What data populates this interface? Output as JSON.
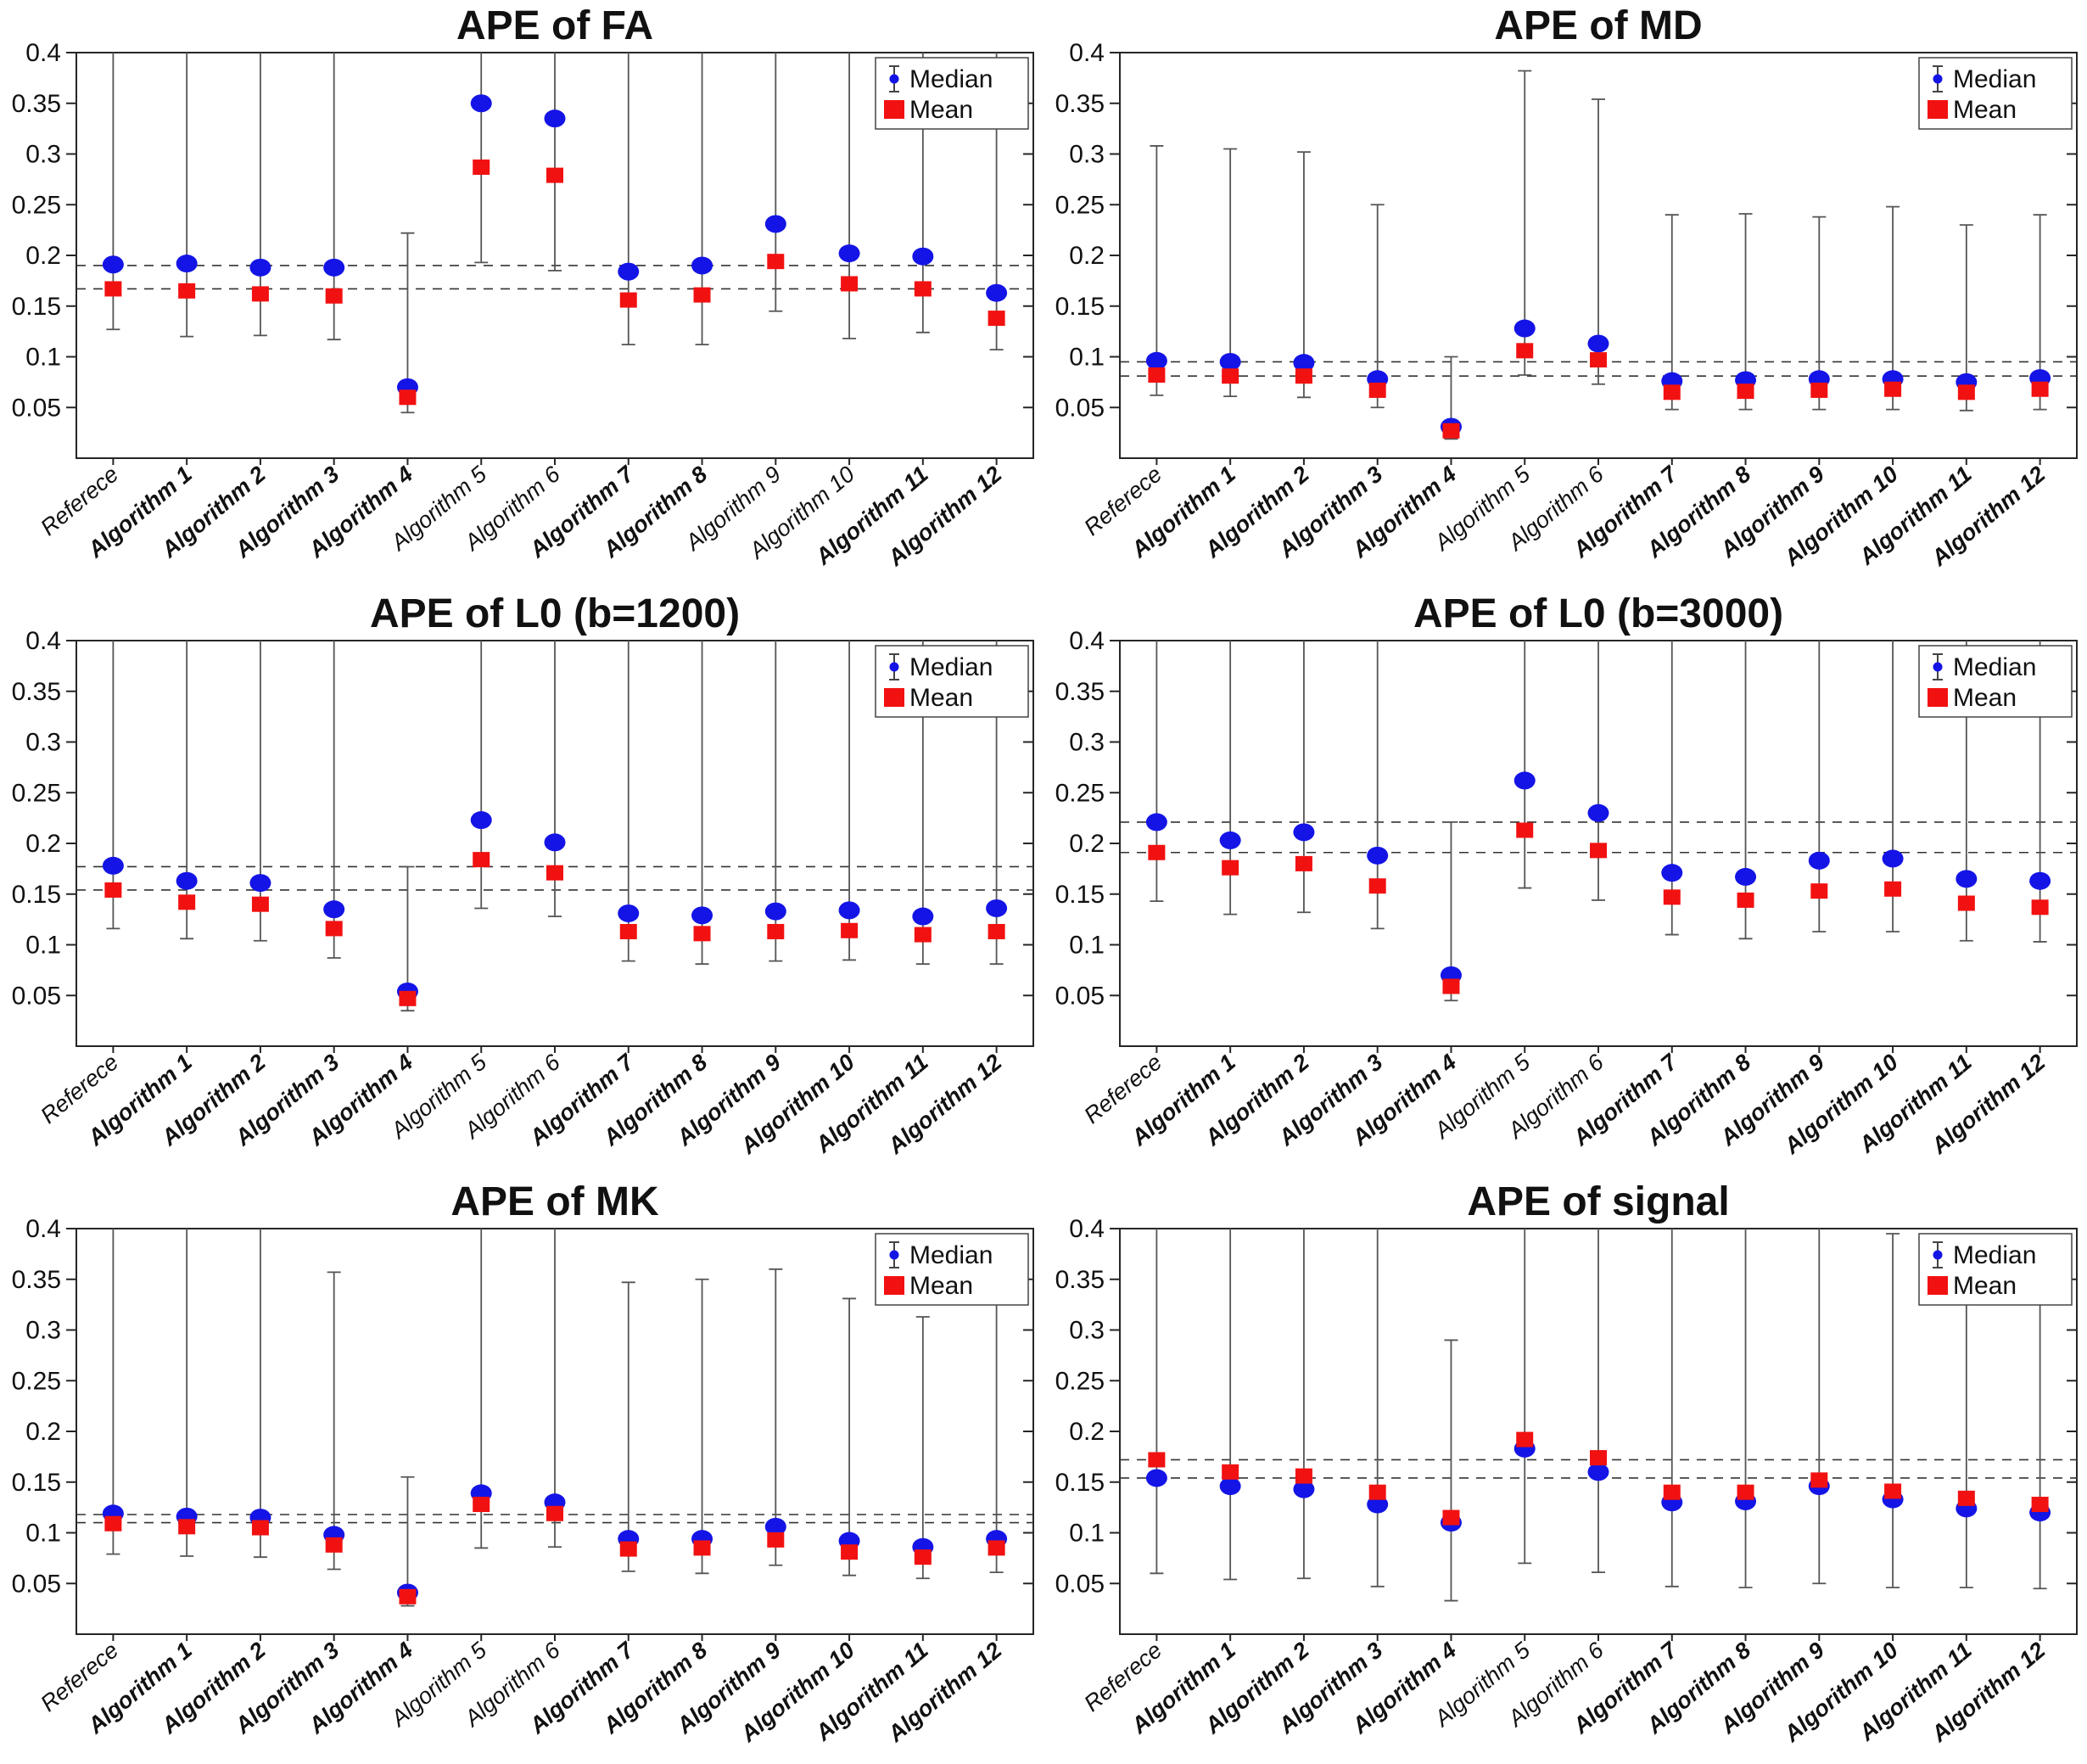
{
  "legend": {
    "median_label": "Median",
    "mean_label": "Mean"
  },
  "axis": {
    "y_min": 0,
    "y_max": 0.4,
    "y_tick_labels": [
      "0.05",
      "0.1",
      "0.15",
      "0.2",
      "0.25",
      "0.3",
      "0.35",
      "0.4"
    ]
  },
  "style": {
    "median_color": "#1414e6",
    "mean_color": "#f21111",
    "whisker_color": "#555555",
    "dashed_color": "#333333",
    "frame_color": "#262626",
    "background": "#ffffff"
  },
  "chart_data": [
    {
      "type": "scatter",
      "title": "APE of FA",
      "ylim": [
        0,
        0.4
      ],
      "grid": false,
      "legend_position": "top-right",
      "ref_dashed_lines": [
        0.19,
        0.167
      ],
      "categories": [
        {
          "label": "Referece",
          "bold": false
        },
        {
          "label": "Algorithm 1",
          "bold": true
        },
        {
          "label": "Algorithm 2",
          "bold": true
        },
        {
          "label": "Algorithm 3",
          "bold": true
        },
        {
          "label": "Algorithm 4",
          "bold": true
        },
        {
          "label": "Algorithm 5",
          "bold": false
        },
        {
          "label": "Algorithm 6",
          "bold": false
        },
        {
          "label": "Algorithm 7",
          "bold": true
        },
        {
          "label": "Algorithm 8",
          "bold": true
        },
        {
          "label": "Algorithm 9",
          "bold": false
        },
        {
          "label": "Algorithm 10",
          "bold": false
        },
        {
          "label": "Algorithm 11",
          "bold": true
        },
        {
          "label": "Algorithm 12",
          "bold": true
        }
      ],
      "series": [
        {
          "name": "Median",
          "marker": "circle",
          "values": [
            0.191,
            0.192,
            0.188,
            0.188,
            0.07,
            0.35,
            0.335,
            0.184,
            0.19,
            0.231,
            0.202,
            0.199,
            0.163
          ]
        },
        {
          "name": "Mean",
          "marker": "square",
          "values": [
            0.167,
            0.165,
            0.162,
            0.16,
            0.06,
            0.287,
            0.279,
            0.156,
            0.161,
            0.194,
            0.172,
            0.167,
            0.138
          ]
        }
      ],
      "whisker_low": [
        0.127,
        0.12,
        0.121,
        0.117,
        0.045,
        0.193,
        0.185,
        0.112,
        0.112,
        0.145,
        0.118,
        0.124,
        0.107
      ],
      "whisker_high": [
        0.4,
        0.4,
        0.4,
        0.4,
        0.222,
        0.4,
        0.4,
        0.4,
        0.4,
        0.4,
        0.4,
        0.4,
        0.4
      ]
    },
    {
      "type": "scatter",
      "title": "APE of MD",
      "ylim": [
        0,
        0.4
      ],
      "grid": false,
      "legend_position": "top-right",
      "ref_dashed_lines": [
        0.095,
        0.081
      ],
      "categories": [
        {
          "label": "Referece",
          "bold": false
        },
        {
          "label": "Algorithm 1",
          "bold": true
        },
        {
          "label": "Algorithm 2",
          "bold": true
        },
        {
          "label": "Algorithm 3",
          "bold": true
        },
        {
          "label": "Algorithm 4",
          "bold": true
        },
        {
          "label": "Algorithm 5",
          "bold": false
        },
        {
          "label": "Algorithm 6",
          "bold": false
        },
        {
          "label": "Algorithm 7",
          "bold": true
        },
        {
          "label": "Algorithm 8",
          "bold": true
        },
        {
          "label": "Algorithm 9",
          "bold": true
        },
        {
          "label": "Algorithm 10",
          "bold": true
        },
        {
          "label": "Algorithm 11",
          "bold": true
        },
        {
          "label": "Algorithm 12",
          "bold": true
        }
      ],
      "series": [
        {
          "name": "Median",
          "marker": "circle",
          "values": [
            0.096,
            0.095,
            0.094,
            0.078,
            0.031,
            0.128,
            0.113,
            0.076,
            0.077,
            0.078,
            0.078,
            0.075,
            0.079
          ]
        },
        {
          "name": "Mean",
          "marker": "square",
          "values": [
            0.082,
            0.081,
            0.081,
            0.067,
            0.027,
            0.106,
            0.097,
            0.065,
            0.066,
            0.067,
            0.068,
            0.065,
            0.068
          ]
        }
      ],
      "whisker_low": [
        0.062,
        0.061,
        0.06,
        0.05,
        0.019,
        0.082,
        0.073,
        0.048,
        0.048,
        0.048,
        0.048,
        0.047,
        0.048
      ],
      "whisker_high": [
        0.308,
        0.305,
        0.302,
        0.25,
        0.1,
        0.382,
        0.354,
        0.24,
        0.241,
        0.238,
        0.248,
        0.23,
        0.24
      ]
    },
    {
      "type": "scatter",
      "title": "APE of L0 (b=1200)",
      "ylim": [
        0,
        0.4
      ],
      "grid": false,
      "legend_position": "top-right",
      "ref_dashed_lines": [
        0.177,
        0.154
      ],
      "categories": [
        {
          "label": "Referece",
          "bold": false
        },
        {
          "label": "Algorithm 1",
          "bold": true
        },
        {
          "label": "Algorithm 2",
          "bold": true
        },
        {
          "label": "Algorithm 3",
          "bold": true
        },
        {
          "label": "Algorithm 4",
          "bold": true
        },
        {
          "label": "Algorithm 5",
          "bold": false
        },
        {
          "label": "Algorithm 6",
          "bold": false
        },
        {
          "label": "Algorithm 7",
          "bold": true
        },
        {
          "label": "Algorithm 8",
          "bold": true
        },
        {
          "label": "Algorithm 9",
          "bold": true
        },
        {
          "label": "Algorithm 10",
          "bold": true
        },
        {
          "label": "Algorithm 11",
          "bold": true
        },
        {
          "label": "Algorithm 12",
          "bold": true
        }
      ],
      "series": [
        {
          "name": "Median",
          "marker": "circle",
          "values": [
            0.178,
            0.163,
            0.161,
            0.135,
            0.054,
            0.223,
            0.201,
            0.131,
            0.129,
            0.133,
            0.134,
            0.128,
            0.136
          ]
        },
        {
          "name": "Mean",
          "marker": "square",
          "values": [
            0.154,
            0.142,
            0.14,
            0.116,
            0.047,
            0.184,
            0.171,
            0.113,
            0.111,
            0.113,
            0.114,
            0.11,
            0.113
          ]
        }
      ],
      "whisker_low": [
        0.116,
        0.106,
        0.104,
        0.087,
        0.035,
        0.136,
        0.128,
        0.084,
        0.081,
        0.084,
        0.085,
        0.081,
        0.081
      ],
      "whisker_high": [
        0.4,
        0.4,
        0.4,
        0.4,
        0.177,
        0.4,
        0.4,
        0.4,
        0.4,
        0.4,
        0.4,
        0.4,
        0.4
      ]
    },
    {
      "type": "scatter",
      "title": "APE of L0 (b=3000)",
      "ylim": [
        0,
        0.4
      ],
      "grid": false,
      "legend_position": "top-right",
      "ref_dashed_lines": [
        0.221,
        0.191
      ],
      "categories": [
        {
          "label": "Referece",
          "bold": false
        },
        {
          "label": "Algorithm 1",
          "bold": true
        },
        {
          "label": "Algorithm 2",
          "bold": true
        },
        {
          "label": "Algorithm 3",
          "bold": true
        },
        {
          "label": "Algorithm 4",
          "bold": true
        },
        {
          "label": "Algorithm 5",
          "bold": false
        },
        {
          "label": "Algorithm 6",
          "bold": false
        },
        {
          "label": "Algorithm 7",
          "bold": true
        },
        {
          "label": "Algorithm 8",
          "bold": true
        },
        {
          "label": "Algorithm 9",
          "bold": true
        },
        {
          "label": "Algorithm 10",
          "bold": true
        },
        {
          "label": "Algorithm 11",
          "bold": true
        },
        {
          "label": "Algorithm 12",
          "bold": true
        }
      ],
      "series": [
        {
          "name": "Median",
          "marker": "circle",
          "values": [
            0.221,
            0.203,
            0.211,
            0.188,
            0.07,
            0.262,
            0.23,
            0.171,
            0.167,
            0.183,
            0.185,
            0.165,
            0.163
          ]
        },
        {
          "name": "Mean",
          "marker": "square",
          "values": [
            0.191,
            0.176,
            0.18,
            0.158,
            0.059,
            0.213,
            0.193,
            0.147,
            0.144,
            0.153,
            0.155,
            0.141,
            0.137
          ]
        }
      ],
      "whisker_low": [
        0.143,
        0.13,
        0.132,
        0.116,
        0.045,
        0.156,
        0.144,
        0.11,
        0.106,
        0.113,
        0.113,
        0.104,
        0.103
      ],
      "whisker_high": [
        0.4,
        0.4,
        0.4,
        0.4,
        0.221,
        0.4,
        0.4,
        0.4,
        0.4,
        0.4,
        0.4,
        0.4,
        0.4
      ]
    },
    {
      "type": "scatter",
      "title": "APE of MK",
      "ylim": [
        0,
        0.4
      ],
      "grid": false,
      "legend_position": "top-right",
      "ref_dashed_lines": [
        0.118,
        0.11
      ],
      "categories": [
        {
          "label": "Referece",
          "bold": false
        },
        {
          "label": "Algorithm 1",
          "bold": true
        },
        {
          "label": "Algorithm 2",
          "bold": true
        },
        {
          "label": "Algorithm 3",
          "bold": true
        },
        {
          "label": "Algorithm 4",
          "bold": true
        },
        {
          "label": "Algorithm 5",
          "bold": false
        },
        {
          "label": "Algorithm 6",
          "bold": false
        },
        {
          "label": "Algorithm 7",
          "bold": true
        },
        {
          "label": "Algorithm 8",
          "bold": true
        },
        {
          "label": "Algorithm 9",
          "bold": true
        },
        {
          "label": "Algorithm 10",
          "bold": true
        },
        {
          "label": "Algorithm 11",
          "bold": true
        },
        {
          "label": "Algorithm 12",
          "bold": true
        }
      ],
      "series": [
        {
          "name": "Median",
          "marker": "circle",
          "values": [
            0.119,
            0.116,
            0.115,
            0.098,
            0.041,
            0.139,
            0.13,
            0.094,
            0.094,
            0.106,
            0.092,
            0.086,
            0.094
          ]
        },
        {
          "name": "Mean",
          "marker": "square",
          "values": [
            0.109,
            0.106,
            0.105,
            0.088,
            0.037,
            0.128,
            0.119,
            0.084,
            0.085,
            0.093,
            0.081,
            0.076,
            0.085
          ]
        }
      ],
      "whisker_low": [
        0.079,
        0.077,
        0.076,
        0.064,
        0.028,
        0.085,
        0.086,
        0.062,
        0.06,
        0.068,
        0.058,
        0.055,
        0.061
      ],
      "whisker_high": [
        0.4,
        0.4,
        0.4,
        0.357,
        0.155,
        0.4,
        0.4,
        0.347,
        0.35,
        0.36,
        0.331,
        0.313,
        0.35
      ]
    },
    {
      "type": "scatter",
      "title": "APE of signal",
      "ylim": [
        0,
        0.4
      ],
      "grid": false,
      "legend_position": "top-right",
      "ref_dashed_lines": [
        0.172,
        0.154
      ],
      "categories": [
        {
          "label": "Referece",
          "bold": false
        },
        {
          "label": "Algorithm 1",
          "bold": true
        },
        {
          "label": "Algorithm 2",
          "bold": true
        },
        {
          "label": "Algorithm 3",
          "bold": true
        },
        {
          "label": "Algorithm 4",
          "bold": true
        },
        {
          "label": "Algorithm 5",
          "bold": false
        },
        {
          "label": "Algorithm 6",
          "bold": false
        },
        {
          "label": "Algorithm 7",
          "bold": true
        },
        {
          "label": "Algorithm 8",
          "bold": true
        },
        {
          "label": "Algorithm 9",
          "bold": true
        },
        {
          "label": "Algorithm 10",
          "bold": true
        },
        {
          "label": "Algorithm 11",
          "bold": true
        },
        {
          "label": "Algorithm 12",
          "bold": true
        }
      ],
      "series": [
        {
          "name": "Median",
          "marker": "circle",
          "values": [
            0.154,
            0.146,
            0.143,
            0.128,
            0.11,
            0.183,
            0.16,
            0.13,
            0.131,
            0.146,
            0.133,
            0.124,
            0.12
          ]
        },
        {
          "name": "Mean",
          "marker": "square",
          "values": [
            0.172,
            0.16,
            0.156,
            0.14,
            0.115,
            0.192,
            0.174,
            0.14,
            0.14,
            0.152,
            0.141,
            0.134,
            0.128
          ]
        }
      ],
      "whisker_low": [
        0.06,
        0.054,
        0.055,
        0.047,
        0.033,
        0.07,
        0.061,
        0.047,
        0.046,
        0.05,
        0.046,
        0.046,
        0.045
      ],
      "whisker_high": [
        0.4,
        0.4,
        0.4,
        0.4,
        0.29,
        0.4,
        0.4,
        0.4,
        0.4,
        0.4,
        0.395,
        0.368,
        0.35
      ]
    }
  ]
}
